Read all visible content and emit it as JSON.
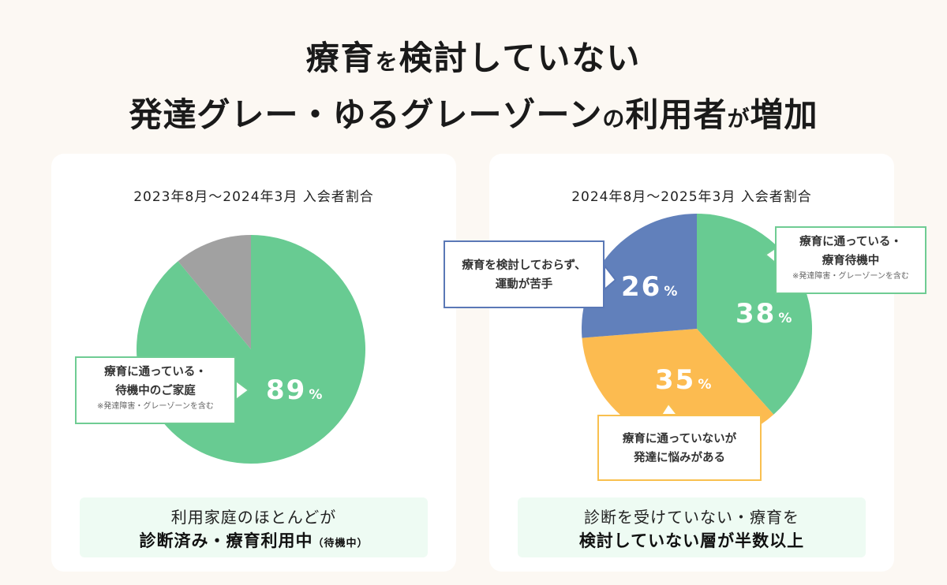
{
  "headline": {
    "line1": {
      "part1": "療育",
      "part2": "を",
      "part3": "検討していない"
    },
    "line2": {
      "part1": "発達グレー・ゆるグレーゾーン",
      "part2": "の",
      "part3": "利用者",
      "part4": "が",
      "part5": "増加"
    }
  },
  "colors": {
    "green": "#68cb92",
    "gray": "#a1a1a1",
    "blue": "#6180bb",
    "yellow": "#fcbb50"
  },
  "chart_data": [
    {
      "type": "pie",
      "title": "2023年8月～2024年3月 入会者割合",
      "slices": [
        {
          "label": "療育に通っている・待機中のご家庭",
          "value": 89,
          "color": "#68cb92"
        },
        {
          "label": "",
          "value": 11,
          "color": "#a1a1a1"
        }
      ]
    },
    {
      "type": "pie",
      "title": "2024年8月～2025年3月 入会者割合",
      "slices": [
        {
          "label": "療育に通っている・療育待機中",
          "value": 38,
          "color": "#68cb92"
        },
        {
          "label": "療育に通っていないが発達に悩みがある",
          "value": 35,
          "color": "#fcbb50"
        },
        {
          "label": "療育を検討しておらず、運動が苦手",
          "value": 26,
          "color": "#6180bb"
        }
      ]
    }
  ],
  "left": {
    "period": "2023年8月～2024年3月 入会者割合",
    "callout": {
      "line1": "療育に通っている・",
      "line2": "待機中のご家庭",
      "note": "※発達障害・グレーゾーンを含む"
    },
    "pct": "89",
    "unit": "%",
    "summary": {
      "line1": "利用家庭のほとんどが",
      "line2": "診断済み・療育利用中",
      "line2_sub": "（待機中）"
    }
  },
  "right": {
    "period": "2024年8月～2025年3月 入会者割合",
    "callout_green": {
      "line1": "療育に通っている・",
      "line2": "療育待機中",
      "note": "※発達障害・グレーゾーンを含む"
    },
    "callout_blue": {
      "line1": "療育を検討しておらず、",
      "line2": "運動が苦手"
    },
    "callout_yellow": {
      "line1": "療育に通っていないが",
      "line2": "発達に悩みがある"
    },
    "pct_green": "38",
    "pct_yellow": "35",
    "pct_blue": "26",
    "unit": "%",
    "summary": {
      "line1": "診断を受けていない・療育を",
      "line2": "検討していない層が半数以上"
    }
  }
}
